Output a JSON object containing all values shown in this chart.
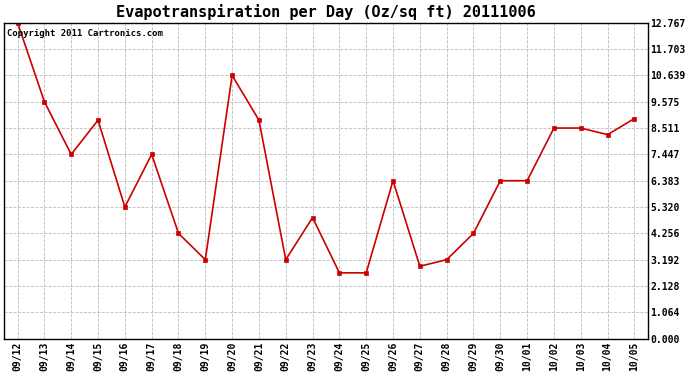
{
  "title": "Evapotranspiration per Day (Oz/sq ft) 20111006",
  "copyright": "Copyright 2011 Cartronics.com",
  "x_labels": [
    "09/12",
    "09/13",
    "09/14",
    "09/15",
    "09/16",
    "09/17",
    "09/18",
    "09/19",
    "09/20",
    "09/21",
    "09/22",
    "09/23",
    "09/24",
    "09/25",
    "09/26",
    "09/27",
    "09/28",
    "09/29",
    "09/30",
    "10/01",
    "10/02",
    "10/03",
    "10/04",
    "10/05"
  ],
  "y_values": [
    12.767,
    9.575,
    7.447,
    8.83,
    5.32,
    7.447,
    4.256,
    3.192,
    10.639,
    8.83,
    3.192,
    4.894,
    2.66,
    2.66,
    6.383,
    2.926,
    3.192,
    4.256,
    6.383,
    6.383,
    8.511,
    8.511,
    8.245,
    8.894
  ],
  "line_color": "#cc0000",
  "marker": "s",
  "marker_size": 2.5,
  "line_width": 1.2,
  "bg_color": "#ffffff",
  "plot_bg_color": "#ffffff",
  "grid_color": "#bbbbbb",
  "yticks": [
    0.0,
    1.064,
    2.128,
    3.192,
    4.256,
    5.32,
    6.383,
    7.447,
    8.511,
    9.575,
    10.639,
    11.703,
    12.767
  ],
  "ylim": [
    0.0,
    12.767
  ],
  "title_fontsize": 11,
  "tick_fontsize": 7,
  "copyright_fontsize": 6.5
}
